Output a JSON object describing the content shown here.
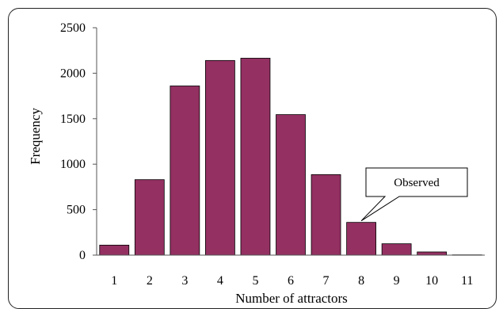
{
  "chart_data": {
    "type": "bar",
    "categories": [
      "1",
      "2",
      "3",
      "4",
      "5",
      "6",
      "7",
      "8",
      "9",
      "10",
      "11"
    ],
    "values": [
      110,
      830,
      1860,
      2140,
      2165,
      1545,
      885,
      360,
      125,
      35,
      3
    ],
    "xlabel": "Number of attractors",
    "ylabel": "Frequency",
    "ylim": [
      0,
      2500
    ],
    "yticks": [
      0,
      500,
      1000,
      1500,
      2000,
      2500
    ],
    "grid": false,
    "legend": "none",
    "bar_color": "#943062",
    "annotation": {
      "text": "Observed",
      "category": "8"
    }
  }
}
